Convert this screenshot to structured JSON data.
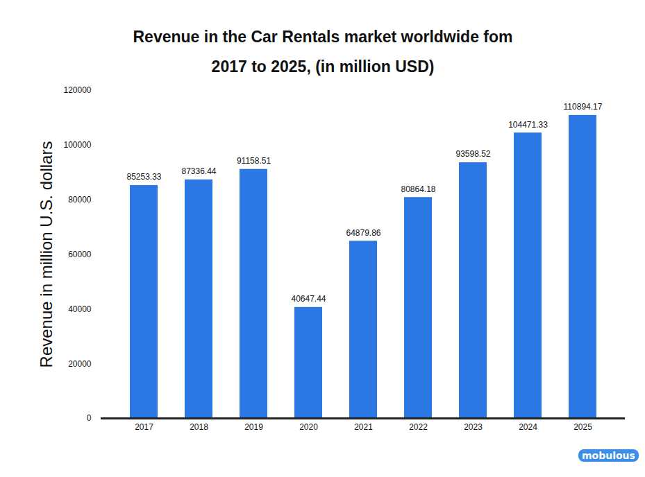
{
  "chart_data": {
    "type": "bar",
    "title": "Revenue in the Car Rentals market worldwide fom 2017 to 2025, (in million USD)",
    "y_label": "Revenue in million U.S. dollars",
    "categories": [
      "2017",
      "2018",
      "2019",
      "2020",
      "2021",
      "2022",
      "2023",
      "2024",
      "2025"
    ],
    "values": [
      85253.33,
      87336.44,
      91158.51,
      40647.44,
      64879.86,
      80864.18,
      93598.52,
      104471.33,
      110894.17
    ],
    "color": "#2b78e4",
    "ylim": [
      0,
      120000
    ],
    "yticks": [
      0,
      20000,
      40000,
      60000,
      80000,
      100000,
      120000
    ],
    "grid": false,
    "data_labels": true,
    "annotations": [
      "mobulous"
    ]
  }
}
